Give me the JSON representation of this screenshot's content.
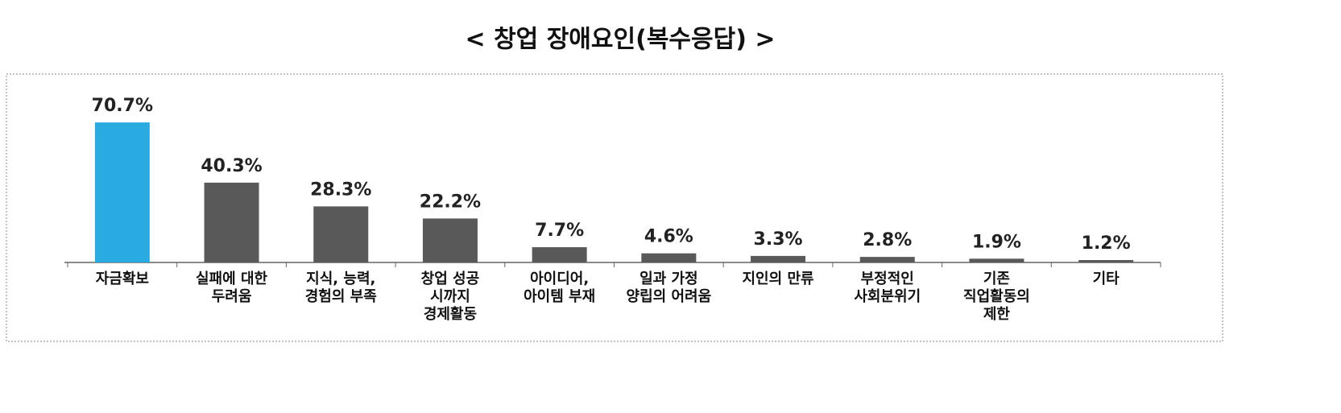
{
  "chart_data": {
    "type": "bar",
    "title": "< 창업 장애요인(복수응답) >",
    "categories": [
      "자금확보",
      "실패에 대한\n두려움",
      "지식, 능력,\n경험의 부족",
      "창업 성공\n시까지\n경제활동",
      "아이디어,\n아이템 부재",
      "일과 가정\n양립의 어려움",
      "지인의 만류",
      "부정적인\n사회분위기",
      "기존\n직업활동의\n제한",
      "기타"
    ],
    "values": [
      70.7,
      40.3,
      28.3,
      22.2,
      7.7,
      4.6,
      3.3,
      2.8,
      1.9,
      1.2
    ],
    "value_labels": [
      "70.7%",
      "40.3%",
      "28.3%",
      "22.2%",
      "7.7%",
      "4.6%",
      "3.3%",
      "2.8%",
      "1.9%",
      "1.2%"
    ],
    "colors": [
      "#29abe2",
      "#595959",
      "#595959",
      "#595959",
      "#595959",
      "#595959",
      "#595959",
      "#595959",
      "#595959",
      "#595959"
    ]
  }
}
